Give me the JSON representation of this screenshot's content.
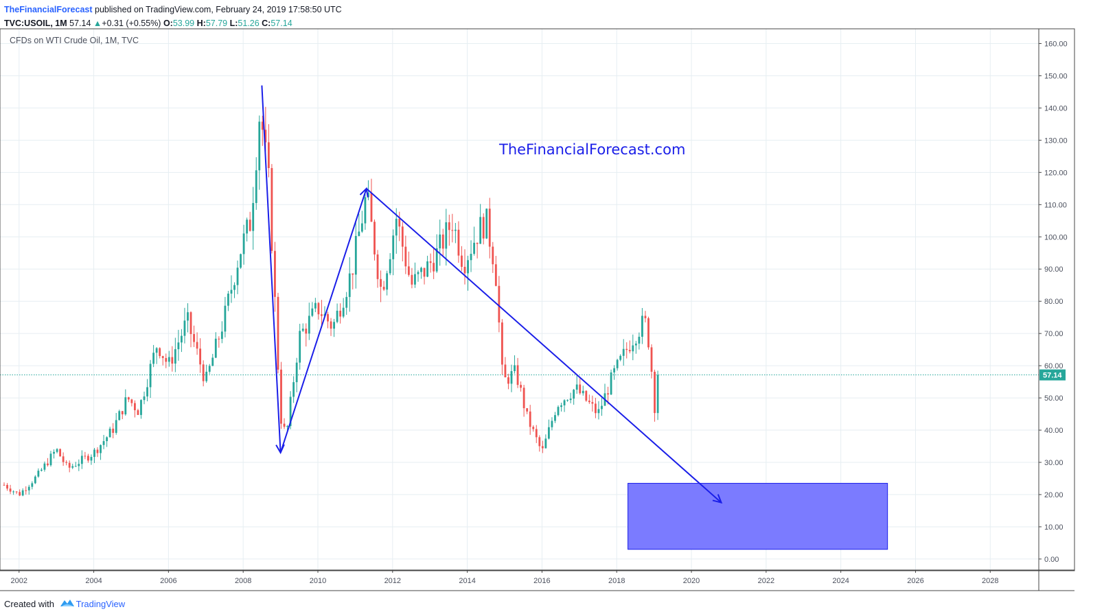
{
  "header": {
    "author": "TheFinancialForecast",
    "published_text": "published on TradingView.com, February 24, 2019 17:58:50 UTC",
    "symbol": "TVC:USOIL, 1M",
    "last": "57.14",
    "change": "+0.31 (+0.55%)",
    "open_label": "O:",
    "open": "53.99",
    "high_label": "H:",
    "high": "57.79",
    "low_label": "L:",
    "low": "51.26",
    "close_label": "C:",
    "close": "57.14"
  },
  "pane_title": "CFDs on WTI Crude Oil, 1M, TVC",
  "watermark_text": "TheFinancialForecast.com",
  "price_label": "57.14",
  "footer": {
    "created_with": "Created with",
    "brand": "TradingView"
  },
  "colors": {
    "up": "#26a69a",
    "down": "#ef5350",
    "annotation": "#1a1ee8",
    "box_fill": "#7b7bff",
    "grid": "#e6eef2"
  },
  "chart_data": {
    "type": "candlestick",
    "y_ticks": [
      "0.00",
      "10.00",
      "20.00",
      "30.00",
      "40.00",
      "50.00",
      "60.00",
      "70.00",
      "80.00",
      "90.00",
      "100.00",
      "110.00",
      "120.00",
      "130.00",
      "140.00",
      "150.00",
      "160.00"
    ],
    "x_ticks": [
      "2002",
      "2004",
      "2006",
      "2008",
      "2010",
      "2012",
      "2014",
      "2016",
      "2018",
      "2020",
      "2022",
      "2024",
      "2026",
      "2028"
    ],
    "ylim": [
      -3,
      165
    ],
    "xlim": [
      2001.6,
      2029.3
    ],
    "last_price": 57.14,
    "series_anchor_closes": [
      {
        "t": 2001.6,
        "v": 23
      },
      {
        "t": 2002.0,
        "v": 20
      },
      {
        "t": 2002.5,
        "v": 26
      },
      {
        "t": 2003.0,
        "v": 34
      },
      {
        "t": 2003.3,
        "v": 28
      },
      {
        "t": 2004.0,
        "v": 33
      },
      {
        "t": 2004.5,
        "v": 40
      },
      {
        "t": 2004.9,
        "v": 50
      },
      {
        "t": 2005.2,
        "v": 46
      },
      {
        "t": 2005.7,
        "v": 67
      },
      {
        "t": 2006.0,
        "v": 60
      },
      {
        "t": 2006.5,
        "v": 74
      },
      {
        "t": 2007.0,
        "v": 55
      },
      {
        "t": 2007.5,
        "v": 75
      },
      {
        "t": 2007.9,
        "v": 95
      },
      {
        "t": 2008.2,
        "v": 105
      },
      {
        "t": 2008.45,
        "v": 140
      },
      {
        "t": 2008.7,
        "v": 115
      },
      {
        "t": 2008.9,
        "v": 68
      },
      {
        "t": 2009.0,
        "v": 44
      },
      {
        "t": 2009.15,
        "v": 38
      },
      {
        "t": 2009.5,
        "v": 69
      },
      {
        "t": 2010.0,
        "v": 78
      },
      {
        "t": 2010.4,
        "v": 72
      },
      {
        "t": 2010.9,
        "v": 89
      },
      {
        "t": 2011.3,
        "v": 113
      },
      {
        "t": 2011.7,
        "v": 83
      },
      {
        "t": 2012.1,
        "v": 106
      },
      {
        "t": 2012.5,
        "v": 85
      },
      {
        "t": 2012.9,
        "v": 90
      },
      {
        "t": 2013.2,
        "v": 95
      },
      {
        "t": 2013.6,
        "v": 105
      },
      {
        "t": 2013.9,
        "v": 92
      },
      {
        "t": 2014.3,
        "v": 102
      },
      {
        "t": 2014.5,
        "v": 105
      },
      {
        "t": 2014.75,
        "v": 91
      },
      {
        "t": 2014.95,
        "v": 55
      },
      {
        "t": 2015.3,
        "v": 58
      },
      {
        "t": 2015.6,
        "v": 44
      },
      {
        "t": 2016.0,
        "v": 33
      },
      {
        "t": 2016.4,
        "v": 48
      },
      {
        "t": 2016.9,
        "v": 53
      },
      {
        "t": 2017.5,
        "v": 45
      },
      {
        "t": 2017.9,
        "v": 57
      },
      {
        "t": 2018.4,
        "v": 68
      },
      {
        "t": 2018.75,
        "v": 74
      },
      {
        "t": 2018.9,
        "v": 65
      },
      {
        "t": 2019.0,
        "v": 46
      },
      {
        "t": 2019.13,
        "v": 57.14
      }
    ],
    "annotations": {
      "trend_lines": [
        {
          "from": {
            "t": 2008.5,
            "v": 147
          },
          "to": {
            "t": 2009.0,
            "v": 33
          },
          "arrow": true
        },
        {
          "from": {
            "t": 2009.0,
            "v": 33
          },
          "to": {
            "t": 2011.3,
            "v": 115
          },
          "arrow": true
        },
        {
          "from": {
            "t": 2011.3,
            "v": 115
          },
          "to": {
            "t": 2020.8,
            "v": 17.5
          },
          "arrow": true
        }
      ],
      "target_zone": {
        "t0": 2018.3,
        "t1": 2025.25,
        "v0": 3,
        "v1": 23.5
      }
    }
  }
}
